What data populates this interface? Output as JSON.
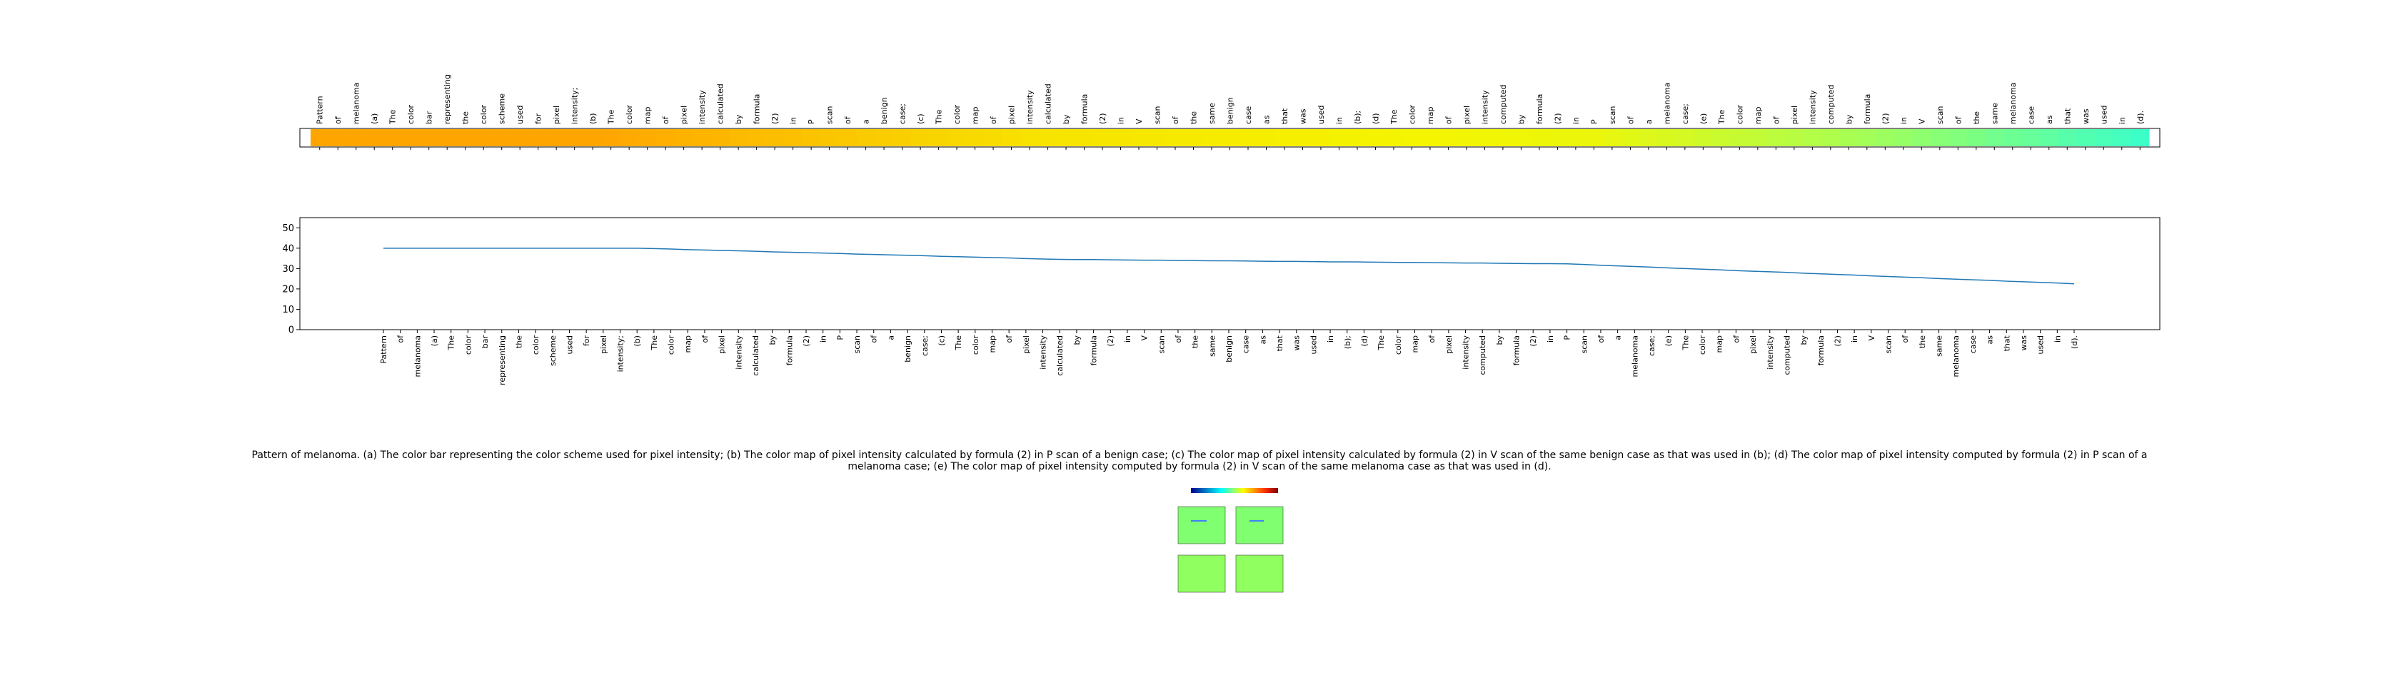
{
  "chart_data": {
    "type": "line",
    "categories": [
      "Pattern",
      "of",
      "melanoma",
      "(a)",
      "The",
      "color",
      "bar",
      "representing",
      "the",
      "color",
      "scheme",
      "used",
      "for",
      "pixel",
      "intensity;",
      "(b)",
      "The",
      "color",
      "map",
      "of",
      "pixel",
      "intensity",
      "calculated",
      "by",
      "formula",
      "(2)",
      "in",
      "P",
      "scan",
      "of",
      "a",
      "benign",
      "case;",
      "(c)",
      "The",
      "color",
      "map",
      "of",
      "pixel",
      "intensity",
      "calculated",
      "by",
      "formula",
      "(2)",
      "in",
      "V",
      "scan",
      "of",
      "the",
      "same",
      "benign",
      "case",
      "as",
      "that",
      "was",
      "used",
      "in",
      "(b);",
      "(d)",
      "The",
      "color",
      "map",
      "of",
      "pixel",
      "intensity",
      "computed",
      "by",
      "formula",
      "(2)",
      "in",
      "P",
      "scan",
      "of",
      "a",
      "melanoma",
      "case;",
      "(e)",
      "The",
      "color",
      "map",
      "of",
      "pixel",
      "intensity",
      "computed",
      "by",
      "formula",
      "(2)",
      "in",
      "V",
      "scan",
      "of",
      "the",
      "same",
      "melanoma",
      "case",
      "as",
      "that",
      "was",
      "used",
      "in",
      "(d)."
    ],
    "values": [
      40,
      40,
      40,
      40,
      40,
      40,
      40,
      40,
      40,
      40,
      40,
      40,
      40,
      40,
      40,
      40.0,
      39.8,
      39.6,
      39.3,
      39.1,
      38.9,
      38.7,
      38.5,
      38.2,
      38.0,
      37.8,
      37.6,
      37.4,
      37.1,
      36.9,
      36.7,
      36.5,
      36.3,
      36.0,
      35.8,
      35.6,
      35.4,
      35.2,
      34.9,
      34.7,
      34.5,
      34.4,
      34.4,
      34.3,
      34.2,
      34.1,
      34.1,
      34.0,
      33.9,
      33.8,
      33.8,
      33.7,
      33.6,
      33.5,
      33.5,
      33.4,
      33.3,
      33.3,
      33.2,
      33.1,
      33.0,
      33.0,
      32.9,
      32.8,
      32.7,
      32.7,
      32.6,
      32.5,
      32.4,
      32.4,
      32.3,
      32.0,
      31.6,
      31.3,
      31.0,
      30.7,
      30.3,
      30.0,
      29.7,
      29.4,
      29.0,
      28.7,
      28.4,
      28.1,
      27.7,
      27.4,
      27.1,
      26.8,
      26.4,
      26.1,
      25.8,
      25.5,
      25.1,
      24.8,
      24.5,
      24.2,
      23.8,
      23.5,
      23.2,
      22.9,
      22.5
    ],
    "color": "#1f77b4",
    "ylim": [
      0,
      55
    ],
    "yticks": [
      0,
      10,
      20,
      30,
      40,
      50
    ],
    "caption": "Pattern of melanoma. (a) The color bar representing the color scheme used for pixel intensity; (b) The color map of pixel intensity calculated by formula (2) in P scan of a benign case; (c) The color map of pixel intensity calculated by formula (2) in V scan of the same benign case as that was used in (b); (d) The color map of pixel intensity computed by formula (2) in P scan of a melanoma case; (e) The color map of pixel intensity computed by formula (2) in V scan of the same melanoma case as that was used in (d)."
  }
}
